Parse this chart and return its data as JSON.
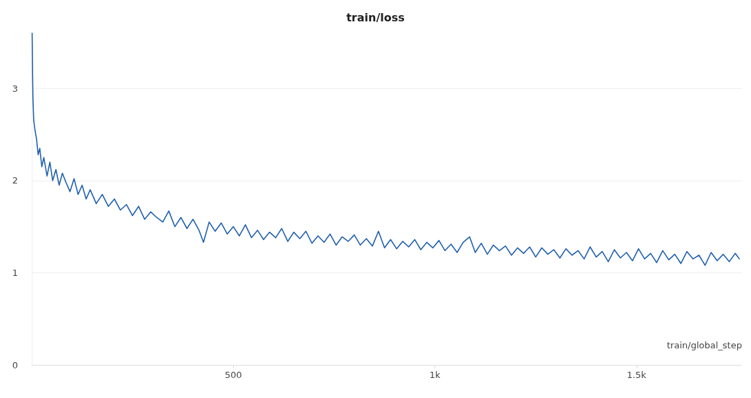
{
  "chart_data": {
    "type": "line",
    "title": "train/loss",
    "xlabel": "train/global_step",
    "xlim": [
      0,
      1760
    ],
    "ylim": [
      0,
      3.6
    ],
    "xticks": [
      500,
      {
        "value": 1000,
        "label": "1k"
      },
      {
        "value": 1500,
        "label": "1.5k"
      }
    ],
    "yticks": [
      0,
      1,
      2,
      3
    ],
    "grid": "y",
    "marker": "none",
    "line_style": "solid",
    "series": [
      {
        "color": "#1f5fae",
        "x": [
          1,
          2,
          3,
          5,
          8,
          12,
          16,
          20,
          25,
          30,
          38,
          45,
          52,
          60,
          68,
          76,
          85,
          95,
          105,
          115,
          125,
          135,
          145,
          160,
          175,
          190,
          205,
          220,
          235,
          250,
          265,
          280,
          295,
          310,
          325,
          340,
          355,
          370,
          385,
          400,
          415,
          426,
          440,
          455,
          470,
          485,
          500,
          515,
          530,
          545,
          560,
          575,
          590,
          605,
          620,
          635,
          650,
          665,
          680,
          695,
          710,
          725,
          740,
          755,
          770,
          785,
          800,
          815,
          830,
          845,
          860,
          875,
          890,
          905,
          920,
          935,
          950,
          965,
          980,
          995,
          1010,
          1025,
          1040,
          1055,
          1070,
          1086,
          1100,
          1115,
          1130,
          1145,
          1160,
          1175,
          1190,
          1205,
          1220,
          1235,
          1250,
          1265,
          1280,
          1295,
          1310,
          1325,
          1340,
          1355,
          1370,
          1385,
          1400,
          1415,
          1430,
          1445,
          1460,
          1475,
          1490,
          1505,
          1520,
          1535,
          1550,
          1565,
          1580,
          1595,
          1610,
          1625,
          1640,
          1655,
          1670,
          1685,
          1700,
          1715,
          1730,
          1745,
          1755
        ],
        "values": [
          3.6,
          3.2,
          2.9,
          2.65,
          2.55,
          2.45,
          2.28,
          2.35,
          2.15,
          2.25,
          2.05,
          2.2,
          2.0,
          2.12,
          1.95,
          2.08,
          1.98,
          1.88,
          2.02,
          1.85,
          1.95,
          1.8,
          1.9,
          1.75,
          1.85,
          1.72,
          1.8,
          1.68,
          1.74,
          1.62,
          1.72,
          1.58,
          1.66,
          1.6,
          1.55,
          1.67,
          1.5,
          1.6,
          1.48,
          1.58,
          1.46,
          1.33,
          1.55,
          1.45,
          1.54,
          1.42,
          1.5,
          1.4,
          1.52,
          1.38,
          1.46,
          1.36,
          1.44,
          1.38,
          1.48,
          1.34,
          1.44,
          1.37,
          1.45,
          1.32,
          1.4,
          1.33,
          1.42,
          1.3,
          1.39,
          1.34,
          1.41,
          1.3,
          1.37,
          1.29,
          1.45,
          1.27,
          1.36,
          1.26,
          1.34,
          1.28,
          1.36,
          1.25,
          1.33,
          1.27,
          1.35,
          1.24,
          1.31,
          1.22,
          1.33,
          1.39,
          1.22,
          1.32,
          1.2,
          1.3,
          1.24,
          1.29,
          1.19,
          1.27,
          1.21,
          1.28,
          1.17,
          1.27,
          1.2,
          1.25,
          1.16,
          1.26,
          1.19,
          1.24,
          1.15,
          1.28,
          1.17,
          1.23,
          1.12,
          1.25,
          1.16,
          1.22,
          1.13,
          1.26,
          1.15,
          1.21,
          1.11,
          1.24,
          1.14,
          1.2,
          1.1,
          1.23,
          1.15,
          1.19,
          1.08,
          1.22,
          1.13,
          1.2,
          1.12,
          1.21,
          1.15
        ]
      }
    ]
  }
}
